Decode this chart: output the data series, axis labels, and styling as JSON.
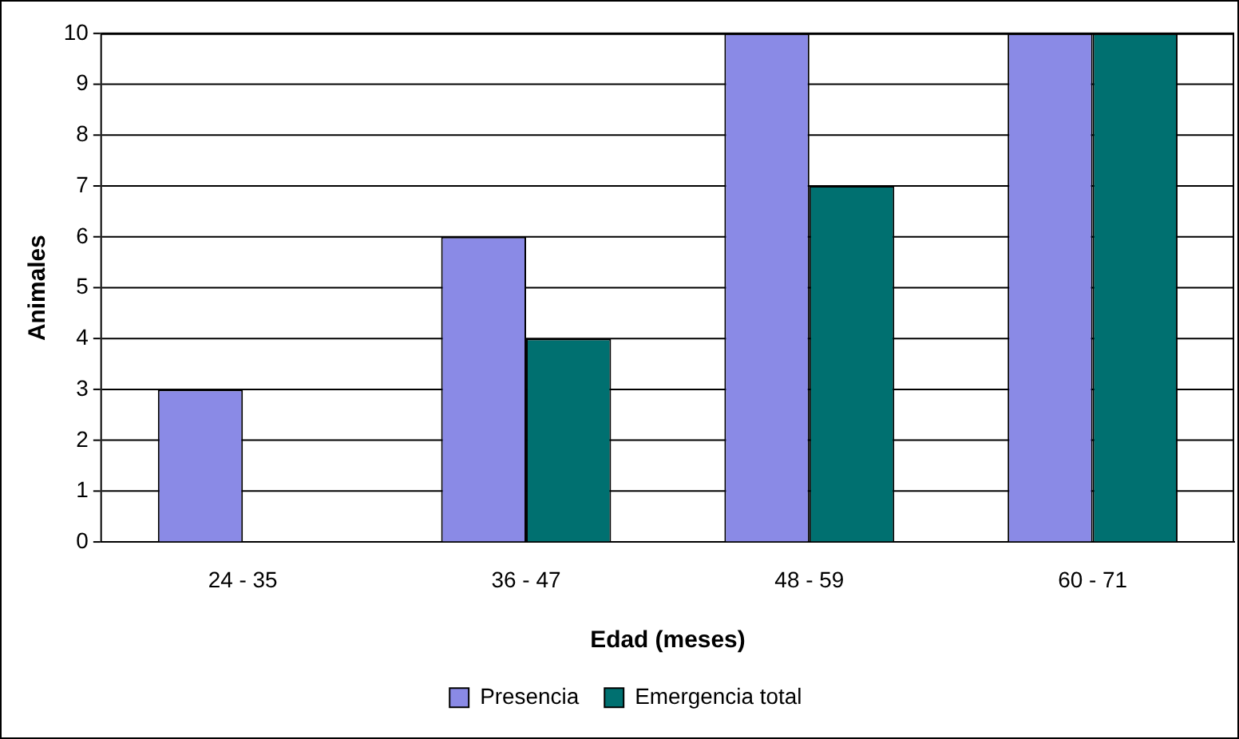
{
  "chart_data": {
    "type": "bar",
    "xlabel": "Edad (meses)",
    "ylabel": "Animales",
    "categories": [
      "24 - 35",
      "36 - 47",
      "48 - 59",
      "60 - 71"
    ],
    "series": [
      {
        "name": "Presencia",
        "color": "#8a8ae6",
        "values": [
          3,
          6,
          10,
          10
        ]
      },
      {
        "name": "Emergencia total",
        "color": "#007070",
        "values": [
          0,
          4,
          7,
          10
        ]
      }
    ],
    "ylim": [
      0,
      10
    ],
    "yticks": [
      0,
      1,
      2,
      3,
      4,
      5,
      6,
      7,
      8,
      9,
      10
    ],
    "grid": "y",
    "legend": "bottom"
  }
}
